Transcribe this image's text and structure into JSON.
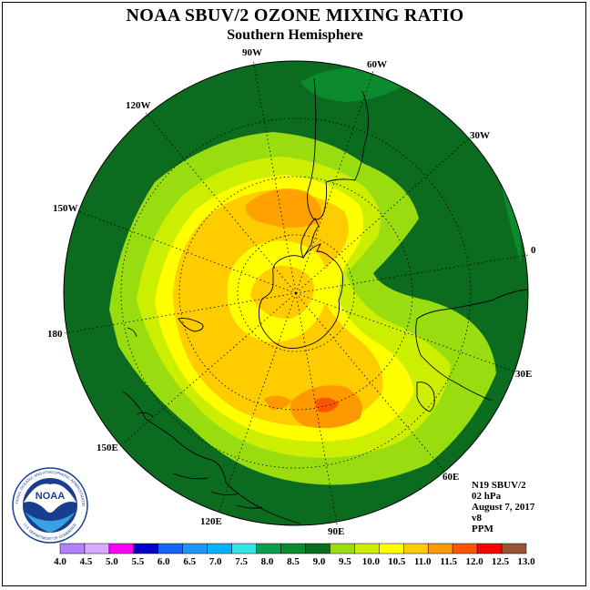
{
  "title": "NOAA SBUV/2 OZONE MIXING RATIO",
  "subtitle": "Southern Hemisphere",
  "map": {
    "projection": "polar stereographic, south pole centered",
    "ocean_background_color": "#0b6b1e",
    "coastline_color": "#000000",
    "grid_line_style": "dotted",
    "longitude_labels": [
      "90W",
      "60W",
      "30W",
      "0",
      "30E",
      "60E",
      "90E",
      "120E",
      "150E",
      "180",
      "150W",
      "120W"
    ],
    "contour_levels_ppm": [
      8.5,
      9.0,
      9.5,
      10.0,
      10.5,
      11.0,
      11.5,
      12.0
    ],
    "field_description_maxima": [
      {
        "region": "South Pole",
        "ppm": 11.0
      },
      {
        "region": "Indian Ocean sector (~90E)",
        "ppm": 11.5
      },
      {
        "region": "Antarctic Peninsula / Weddell Sea (~60W)",
        "ppm": 11.0
      },
      {
        "region": "South Pacific (~150W)",
        "ppm": 10.5
      }
    ]
  },
  "info": {
    "satellite": "N19 SBUV/2",
    "pressure": "02 hPa",
    "date": "August 7, 2017",
    "version": "v8",
    "units": "PPM"
  },
  "logo": {
    "text": "NOAA",
    "ring_text": "NATIONAL OCEANIC AND ATMOSPHERIC ADMINISTRATION",
    "ring_text_bottom": "U.S. DEPARTMENT OF COMMERCE"
  },
  "colorbar": {
    "labels": [
      "4.0",
      "4.5",
      "5.0",
      "5.5",
      "6.0",
      "6.5",
      "7.0",
      "7.5",
      "8.0",
      "8.5",
      "9.0",
      "9.5",
      "10.0",
      "10.5",
      "11.0",
      "11.5",
      "12.0",
      "12.5",
      "13.0"
    ],
    "colors": [
      "#b380ff",
      "#d9aaff",
      "#ff00ff",
      "#0000cc",
      "#1464ff",
      "#1e96ff",
      "#00b4ff",
      "#33e6e6",
      "#00a050",
      "#0b8a2e",
      "#0b6b1e",
      "#99dd11",
      "#ccee00",
      "#ffff00",
      "#ffcc00",
      "#ff9900",
      "#ff5500",
      "#ff0000",
      "#995533"
    ]
  }
}
